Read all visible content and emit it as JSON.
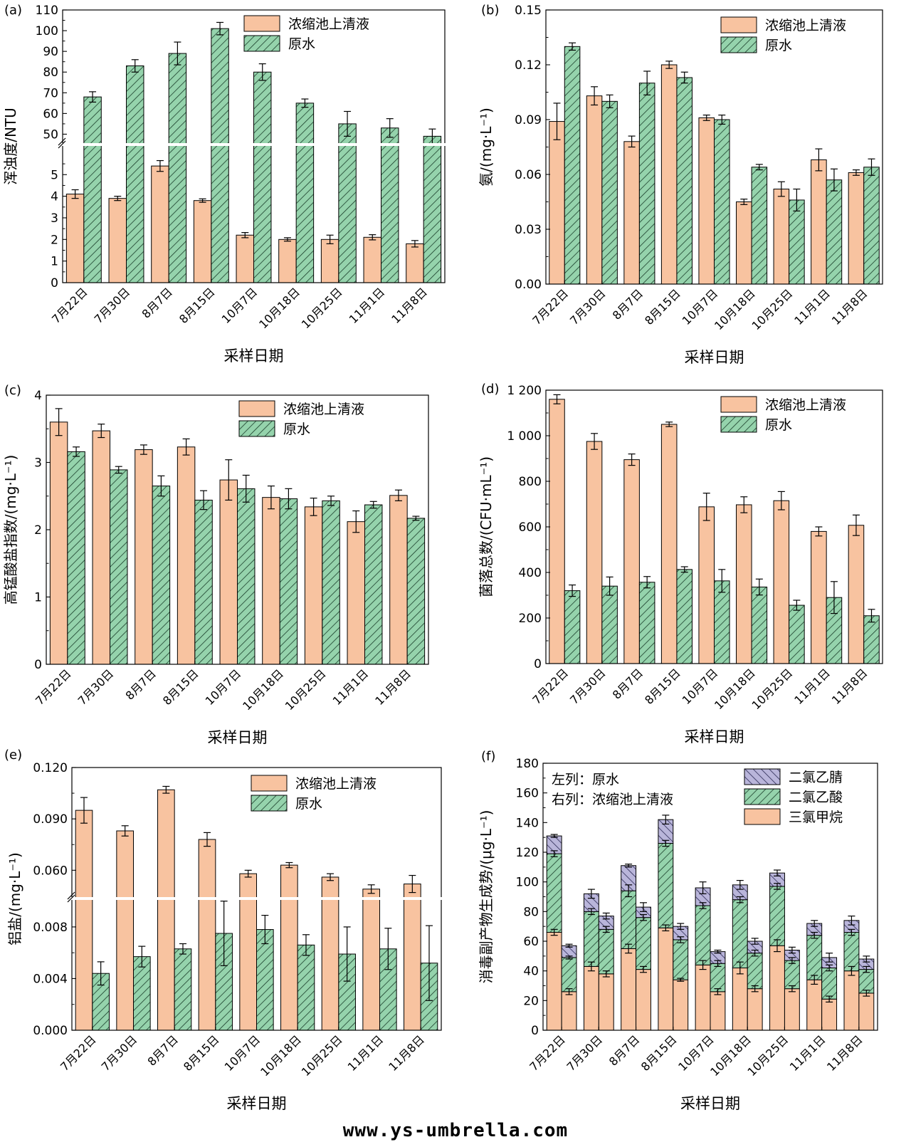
{
  "figure": {
    "watermark": "www.ys-umbrella.com",
    "colors": {
      "concentrate": "#F8C3A0",
      "raw": "#95D3AC",
      "dcan": "#B9B5DA",
      "outline": "#000000",
      "break_line": "#ffffff"
    },
    "legend_labels": {
      "concentrate": "浓缩池上清液",
      "raw": "原水",
      "dcan": "二氯乙腈",
      "dcaa": "二氯乙酸",
      "tcm": "三氯甲烷"
    }
  },
  "chart_data": [
    {
      "id": "a",
      "panel_label": "(a)",
      "type": "bar",
      "title": "",
      "xlabel": "采样日期",
      "ylabel": "浑浊度/NTU",
      "categories": [
        "7月22日",
        "7月30日",
        "8月7日",
        "8月15日",
        "10月7日",
        "10月18日",
        "10月25日",
        "11月1日",
        "11月8日"
      ],
      "axis_break": true,
      "lower_ylim": [
        0,
        5.8
      ],
      "lower_ticks": [
        0,
        1,
        2,
        3,
        4,
        5
      ],
      "upper_ylim": [
        45,
        110
      ],
      "upper_ticks": [
        50,
        60,
        70,
        80,
        90,
        100,
        110
      ],
      "legend": [
        "浓缩池上清液",
        "原水"
      ],
      "series": [
        {
          "name": "浓缩池上清液",
          "values": [
            4.1,
            3.9,
            5.4,
            3.8,
            2.2,
            2.0,
            2.0,
            2.1,
            1.8
          ],
          "errors": [
            0.2,
            0.1,
            0.25,
            0.08,
            0.12,
            0.08,
            0.2,
            0.12,
            0.15
          ]
        },
        {
          "name": "原水",
          "values": [
            68,
            83,
            89,
            101,
            80,
            65,
            55,
            53,
            49
          ],
          "errors": [
            2.5,
            3,
            5.5,
            3,
            4,
            2,
            6,
            4.5,
            3.5
          ]
        }
      ]
    },
    {
      "id": "b",
      "panel_label": "(b)",
      "type": "bar",
      "title": "",
      "xlabel": "采样日期",
      "ylabel": "氨/(mg·L⁻¹)",
      "categories": [
        "7月22日",
        "7月30日",
        "8月7日",
        "8月15日",
        "10月7日",
        "10月18日",
        "10月25日",
        "11月1日",
        "11月8日"
      ],
      "ylim": [
        0,
        0.15
      ],
      "ticks": [
        "0.00",
        "0.03",
        "0.06",
        "0.09",
        "0.12",
        "0.15"
      ],
      "legend": [
        "浓缩池上清液",
        "原水"
      ],
      "series": [
        {
          "name": "浓缩池上清液",
          "values": [
            0.089,
            0.103,
            0.078,
            0.12,
            0.091,
            0.045,
            0.052,
            0.068,
            0.061
          ],
          "errors": [
            0.01,
            0.005,
            0.003,
            0.002,
            0.0015,
            0.0015,
            0.004,
            0.006,
            0.0015
          ]
        },
        {
          "name": "原水",
          "values": [
            0.13,
            0.1,
            0.11,
            0.113,
            0.09,
            0.064,
            0.046,
            0.057,
            0.064
          ],
          "errors": [
            0.002,
            0.0035,
            0.0065,
            0.003,
            0.0025,
            0.0015,
            0.006,
            0.006,
            0.0045
          ]
        }
      ]
    },
    {
      "id": "c",
      "panel_label": "(c)",
      "type": "bar",
      "title": "",
      "xlabel": "采样日期",
      "ylabel": "高锰酸盐指数/(mg·L⁻¹)",
      "categories": [
        "7月22日",
        "7月30日",
        "8月7日",
        "8月15日",
        "10月7日",
        "10月18日",
        "10月25日",
        "11月1日",
        "11月8日"
      ],
      "ylim": [
        0,
        4
      ],
      "ticks": [
        "0",
        "1",
        "2",
        "3",
        "4"
      ],
      "legend": [
        "浓缩池上清液",
        "原水"
      ],
      "series": [
        {
          "name": "浓缩池上清液",
          "values": [
            3.6,
            3.47,
            3.19,
            3.23,
            2.74,
            2.48,
            2.34,
            2.12,
            2.51
          ],
          "errors": [
            0.2,
            0.1,
            0.07,
            0.12,
            0.3,
            0.17,
            0.13,
            0.16,
            0.08
          ]
        },
        {
          "name": "原水",
          "values": [
            3.16,
            2.89,
            2.65,
            2.44,
            2.61,
            2.46,
            2.43,
            2.37,
            2.17
          ],
          "errors": [
            0.07,
            0.05,
            0.15,
            0.14,
            0.2,
            0.15,
            0.07,
            0.05,
            0.03
          ]
        }
      ]
    },
    {
      "id": "d",
      "panel_label": "(d)",
      "type": "bar",
      "title": "",
      "xlabel": "采样日期",
      "ylabel": "菌落总数/(CFU·mL⁻¹)",
      "categories": [
        "7月22日",
        "7月30日",
        "8月7日",
        "8月15日",
        "10月7日",
        "10月18日",
        "10月25日",
        "11月1日",
        "11月8日"
      ],
      "ylim": [
        0,
        1200
      ],
      "ticks": [
        "0",
        "200",
        "400",
        "600",
        "800",
        "1 000",
        "1 200"
      ],
      "legend": [
        "浓缩池上清液",
        "原水"
      ],
      "series": [
        {
          "name": "浓缩池上清液",
          "values": [
            1160,
            975,
            895,
            1050,
            688,
            697,
            715,
            580,
            607
          ],
          "errors": [
            20,
            35,
            25,
            10,
            60,
            35,
            40,
            20,
            45
          ]
        },
        {
          "name": "原水",
          "values": [
            320,
            340,
            357,
            413,
            363,
            336,
            256,
            290,
            210
          ],
          "errors": [
            25,
            40,
            25,
            12,
            50,
            35,
            22,
            70,
            28
          ]
        }
      ]
    },
    {
      "id": "e",
      "panel_label": "(e)",
      "type": "bar",
      "title": "",
      "xlabel": "采样日期",
      "ylabel": "铝盐/(mg·L⁻¹)",
      "categories": [
        "7月22日",
        "7月30日",
        "8月7日",
        "8月15日",
        "10月7日",
        "10月18日",
        "10月25日",
        "11月1日",
        "11月8日"
      ],
      "axis_break": true,
      "lower_ylim": [
        0,
        0.0102
      ],
      "lower_ticks": [
        "0.000",
        "0.004",
        "0.008"
      ],
      "upper_ylim": [
        0.0435,
        0.12
      ],
      "upper_ticks": [
        "0.060",
        "0.090",
        "0.120"
      ],
      "legend": [
        "浓缩池上清液",
        "原水"
      ],
      "series": [
        {
          "name": "浓缩池上清液",
          "values": [
            0.095,
            0.083,
            0.107,
            0.078,
            0.058,
            0.063,
            0.056,
            0.049,
            0.052
          ],
          "errors": [
            0.0075,
            0.003,
            0.002,
            0.004,
            0.002,
            0.0015,
            0.002,
            0.0025,
            0.005
          ]
        },
        {
          "name": "原水",
          "values": [
            0.0044,
            0.0057,
            0.0063,
            0.0075,
            0.0078,
            0.0066,
            0.0059,
            0.0063,
            0.0052
          ],
          "errors": [
            0.0009,
            0.0008,
            0.0004,
            0.0025,
            0.0011,
            0.0008,
            0.0021,
            0.0016,
            0.0029
          ]
        }
      ]
    },
    {
      "id": "f",
      "panel_label": "(f)",
      "type": "bar",
      "stacked": true,
      "title": "",
      "xlabel": "采样日期",
      "ylabel": "消毒副产物生成势/(μg·L⁻¹)",
      "note_lines": [
        "左列：原水",
        "右列：浓缩池上清液"
      ],
      "categories": [
        "7月22日",
        "7月30日",
        "8月7日",
        "8月15日",
        "10月7日",
        "10月18日",
        "10月25日",
        "11月1日",
        "11月8日"
      ],
      "ylim": [
        0,
        180
      ],
      "ticks": [
        "0",
        "20",
        "40",
        "60",
        "80",
        "100",
        "120",
        "140",
        "160",
        "180"
      ],
      "legend": [
        "二氯乙腈",
        "二氯乙酸",
        "三氯甲烷"
      ],
      "groups": [
        {
          "name": "原水",
          "tcm": [
            66,
            43,
            55,
            69,
            44,
            42,
            57,
            34,
            40
          ],
          "dcaa": [
            53,
            37,
            39,
            57,
            40,
            46,
            40,
            30,
            26
          ],
          "dcan": [
            12,
            12,
            17,
            16,
            12,
            10,
            9,
            8,
            8
          ],
          "tcm_err": [
            2,
            3,
            3,
            2,
            3,
            4,
            4,
            3,
            3
          ],
          "dcaa_err": [
            2,
            2,
            4,
            2,
            2,
            2,
            2,
            2,
            2
          ],
          "total_err": [
            1,
            3,
            1,
            3,
            4,
            3,
            2,
            2,
            3
          ]
        },
        {
          "name": "浓缩池上清液",
          "tcm": [
            26,
            38,
            41,
            34,
            26,
            28,
            28,
            21,
            25
          ],
          "dcaa": [
            23,
            30,
            35,
            27,
            19,
            24,
            19,
            21,
            16
          ],
          "dcan": [
            8,
            9,
            7,
            9,
            8,
            8,
            7,
            7,
            7
          ],
          "tcm_err": [
            2,
            2,
            2,
            1,
            2,
            2,
            2,
            2,
            2
          ],
          "dcaa_err": [
            1,
            2,
            2,
            2,
            2,
            2,
            2,
            2,
            2
          ],
          "total_err": [
            1,
            2,
            3,
            2,
            1,
            2,
            2,
            3,
            2
          ]
        }
      ]
    }
  ]
}
